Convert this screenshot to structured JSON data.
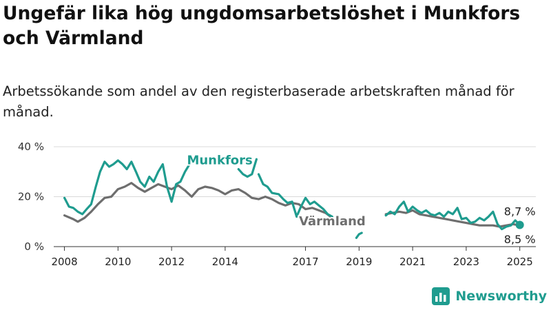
{
  "title": "Ungefär lika hög ungdomsarbetslöshet i Munkfors och Värmland",
  "subtitle": "Arbetssökande som andel av den registerbaserade arbetskraften månad för månad.",
  "brand": {
    "name": "Newsworthy",
    "icon": "chart-logo-icon",
    "color": "#1f9c8f"
  },
  "chart_data": {
    "type": "line",
    "x_unit": "year",
    "ylim": [
      0,
      40
    ],
    "xlim": [
      2007.6,
      2025.6
    ],
    "y_ticks": [
      {
        "value": 0,
        "label": "0 %"
      },
      {
        "value": 20,
        "label": "20 %"
      },
      {
        "value": 40,
        "label": "40 %"
      }
    ],
    "x_ticks": [
      {
        "value": 2008,
        "label": "2008"
      },
      {
        "value": 2010,
        "label": "2010"
      },
      {
        "value": 2012,
        "label": "2012"
      },
      {
        "value": 2014,
        "label": "2014"
      },
      {
        "value": 2017,
        "label": "2017"
      },
      {
        "value": 2019,
        "label": "2019"
      },
      {
        "value": 2021,
        "label": "2021"
      },
      {
        "value": 2023,
        "label": "2023"
      },
      {
        "value": 2025,
        "label": "2025"
      }
    ],
    "grid": true,
    "series": [
      {
        "name": "Värmland",
        "color": "#6e6e6e",
        "label_position": [
          2018.0,
          8.5
        ],
        "end_label": "8,5 %",
        "points": [
          [
            2008.0,
            12.5
          ],
          [
            2008.33,
            11.0
          ],
          [
            2008.5,
            10.0
          ],
          [
            2008.75,
            11.5
          ],
          [
            2009.0,
            14.0
          ],
          [
            2009.25,
            17.0
          ],
          [
            2009.5,
            19.5
          ],
          [
            2009.75,
            20.0
          ],
          [
            2010.0,
            23.0
          ],
          [
            2010.25,
            24.0
          ],
          [
            2010.5,
            25.5
          ],
          [
            2010.75,
            23.5
          ],
          [
            2011.0,
            22.0
          ],
          [
            2011.25,
            23.5
          ],
          [
            2011.5,
            25.0
          ],
          [
            2011.75,
            24.0
          ],
          [
            2012.0,
            23.0
          ],
          [
            2012.25,
            24.5
          ],
          [
            2012.5,
            22.5
          ],
          [
            2012.75,
            20.0
          ],
          [
            2013.0,
            23.0
          ],
          [
            2013.25,
            24.0
          ],
          [
            2013.5,
            23.5
          ],
          [
            2013.75,
            22.5
          ],
          [
            2014.0,
            21.0
          ],
          [
            2014.25,
            22.5
          ],
          [
            2014.5,
            23.0
          ],
          [
            2014.75,
            21.5
          ],
          [
            2015.0,
            19.5
          ],
          [
            2015.25,
            19.0
          ],
          [
            2015.5,
            20.0
          ],
          [
            2015.75,
            19.0
          ],
          [
            2016.0,
            17.5
          ],
          [
            2016.25,
            16.5
          ],
          [
            2016.5,
            17.5
          ],
          [
            2016.75,
            17.0
          ],
          [
            2017.0,
            15.0
          ],
          [
            2017.25,
            15.5
          ],
          [
            2017.5,
            14.5
          ],
          [
            2017.75,
            13.5
          ],
          [
            2018.0,
            11.5
          ]
        ],
        "points_after": [
          [
            2020.0,
            13.0
          ],
          [
            2020.25,
            13.5
          ],
          [
            2020.5,
            14.0
          ],
          [
            2020.75,
            13.5
          ],
          [
            2021.0,
            14.5
          ],
          [
            2021.25,
            13.0
          ],
          [
            2021.5,
            12.5
          ],
          [
            2021.75,
            12.0
          ],
          [
            2022.0,
            11.5
          ],
          [
            2022.25,
            11.0
          ],
          [
            2022.5,
            10.5
          ],
          [
            2022.75,
            10.0
          ],
          [
            2023.0,
            9.5
          ],
          [
            2023.25,
            9.0
          ],
          [
            2023.5,
            8.5
          ],
          [
            2023.75,
            8.5
          ],
          [
            2024.0,
            8.5
          ],
          [
            2024.25,
            8.0
          ],
          [
            2024.5,
            8.5
          ],
          [
            2024.75,
            9.0
          ],
          [
            2025.0,
            8.5
          ]
        ]
      },
      {
        "name": "Munkfors",
        "color": "#1f9c8f",
        "label_position": [
          2013.8,
          33.0
        ],
        "end_label": "8,7 %",
        "segments": [
          [
            [
              2008.0,
              19.5
            ],
            [
              2008.17,
              16.0
            ],
            [
              2008.33,
              15.5
            ],
            [
              2008.5,
              14.0
            ],
            [
              2008.67,
              13.0
            ],
            [
              2008.83,
              15.0
            ],
            [
              2009.0,
              17.0
            ],
            [
              2009.17,
              24.0
            ],
            [
              2009.33,
              30.0
            ],
            [
              2009.5,
              34.0
            ],
            [
              2009.67,
              32.0
            ],
            [
              2009.83,
              33.0
            ],
            [
              2010.0,
              34.5
            ],
            [
              2010.17,
              33.0
            ],
            [
              2010.33,
              31.0
            ],
            [
              2010.5,
              34.0
            ],
            [
              2010.67,
              30.0
            ],
            [
              2010.83,
              26.0
            ],
            [
              2011.0,
              24.0
            ],
            [
              2011.17,
              28.0
            ],
            [
              2011.33,
              26.0
            ],
            [
              2011.5,
              30.0
            ],
            [
              2011.67,
              33.0
            ],
            [
              2011.83,
              24.0
            ],
            [
              2012.0,
              18.0
            ],
            [
              2012.17,
              25.0
            ],
            [
              2012.33,
              26.0
            ],
            [
              2012.5,
              30.0
            ],
            [
              2012.67,
              33.0
            ]
          ],
          [
            [
              2014.5,
              31.0
            ],
            [
              2014.67,
              29.0
            ],
            [
              2014.83,
              28.0
            ],
            [
              2015.0,
              29.0
            ],
            [
              2015.17,
              35.0
            ]
          ],
          [
            [
              2015.25,
              29.0
            ],
            [
              2015.42,
              25.0
            ],
            [
              2015.58,
              24.0
            ],
            [
              2015.75,
              21.5
            ],
            [
              2016.0,
              21.0
            ],
            [
              2016.17,
              19.0
            ],
            [
              2016.33,
              17.5
            ],
            [
              2016.5,
              18.0
            ],
            [
              2016.67,
              12.0
            ],
            [
              2016.83,
              16.0
            ],
            [
              2017.0,
              19.5
            ],
            [
              2017.17,
              17.0
            ],
            [
              2017.33,
              18.0
            ],
            [
              2017.5,
              16.5
            ],
            [
              2017.67,
              15.0
            ],
            [
              2017.83,
              13.0
            ],
            [
              2018.0,
              12.0
            ]
          ],
          [
            [
              2018.9,
              3.5
            ],
            [
              2019.0,
              5.0
            ],
            [
              2019.1,
              5.5
            ]
          ],
          [
            [
              2020.0,
              12.5
            ],
            [
              2020.17,
              14.0
            ],
            [
              2020.33,
              13.0
            ],
            [
              2020.5,
              16.0
            ],
            [
              2020.67,
              18.0
            ],
            [
              2020.83,
              14.0
            ],
            [
              2021.0,
              16.0
            ],
            [
              2021.17,
              14.5
            ],
            [
              2021.33,
              13.5
            ],
            [
              2021.5,
              14.5
            ],
            [
              2021.67,
              13.0
            ],
            [
              2021.83,
              12.5
            ],
            [
              2022.0,
              13.5
            ],
            [
              2022.17,
              12.0
            ],
            [
              2022.33,
              14.0
            ],
            [
              2022.5,
              13.0
            ],
            [
              2022.67,
              15.5
            ],
            [
              2022.83,
              11.0
            ],
            [
              2023.0,
              11.5
            ],
            [
              2023.17,
              9.5
            ],
            [
              2023.33,
              10.0
            ],
            [
              2023.5,
              11.5
            ],
            [
              2023.67,
              10.5
            ],
            [
              2023.83,
              12.0
            ],
            [
              2024.0,
              14.0
            ],
            [
              2024.17,
              9.0
            ],
            [
              2024.33,
              7.0
            ],
            [
              2024.5,
              8.0
            ],
            [
              2024.67,
              8.5
            ],
            [
              2024.83,
              10.5
            ],
            [
              2025.0,
              8.7
            ]
          ]
        ]
      }
    ]
  }
}
